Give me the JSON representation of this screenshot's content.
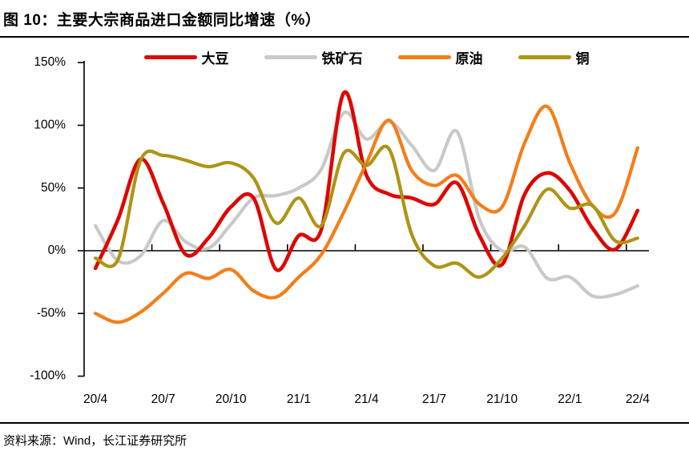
{
  "header": {
    "title": "图 10：主要大宗商品进口金额同比增速（%）"
  },
  "footer": {
    "source": "资料来源：Wind，长江证券研究所"
  },
  "colors": {
    "soybean": "#DD0700",
    "iron_ore": "#C9C9C9",
    "crude_oil": "#F57D17",
    "copper": "#AE9414",
    "axis": "#000000"
  },
  "chart_data": {
    "type": "line",
    "title": "主要大宗商品进口金额同比增速（%）",
    "x": [
      "20/4",
      "20/5",
      "20/6",
      "20/7",
      "20/8",
      "20/9",
      "20/10",
      "20/11",
      "20/12",
      "21/1",
      "21/2",
      "21/3",
      "21/4",
      "21/5",
      "21/6",
      "21/7",
      "21/8",
      "21/9",
      "21/10",
      "21/11",
      "21/12",
      "22/1",
      "22/2",
      "22/3",
      "22/4"
    ],
    "x_tick_labels": [
      "20/4",
      "20/7",
      "20/10",
      "21/1",
      "21/4",
      "21/7",
      "21/10",
      "22/1",
      "22/4"
    ],
    "y_tick_labels": [
      "150%",
      "100%",
      "50%",
      "0%",
      "-50%",
      "-100%"
    ],
    "ylim": [
      -100,
      150
    ],
    "ytick_step": 50,
    "grid": false,
    "legend_position": "top",
    "series": [
      {
        "id": "soybean",
        "name": "大豆",
        "color": "#DD0700",
        "values": [
          -14,
          25,
          73,
          38,
          -3,
          10,
          35,
          42,
          -15,
          12,
          17,
          126,
          60,
          45,
          42,
          37,
          54,
          12,
          -11,
          45,
          62,
          48,
          18,
          1,
          32
        ]
      },
      {
        "id": "iron-ore",
        "name": "铁矿石",
        "color": "#C9C9C9",
        "values": [
          20,
          -8,
          -4,
          24,
          7,
          2,
          21,
          42,
          44,
          50,
          65,
          110,
          89,
          103,
          84,
          64,
          95,
          25,
          0,
          3,
          -22,
          -21,
          -36,
          -35,
          -28
        ]
      },
      {
        "id": "crude-oil",
        "name": "原油",
        "color": "#F57D17",
        "values": [
          -50,
          -57,
          -49,
          -34,
          -18,
          -22,
          -15,
          -32,
          -37,
          -21,
          -3,
          31,
          70,
          104,
          64,
          52,
          60,
          37,
          35,
          86,
          115,
          70,
          36,
          30,
          82
        ]
      },
      {
        "id": "copper",
        "name": "铜",
        "color": "#AE9414",
        "values": [
          -6,
          -7,
          72,
          76,
          72,
          67,
          70,
          58,
          22,
          42,
          20,
          78,
          68,
          81,
          13,
          -12,
          -10,
          -21,
          -6,
          20,
          49,
          34,
          36,
          8,
          10
        ]
      }
    ]
  }
}
